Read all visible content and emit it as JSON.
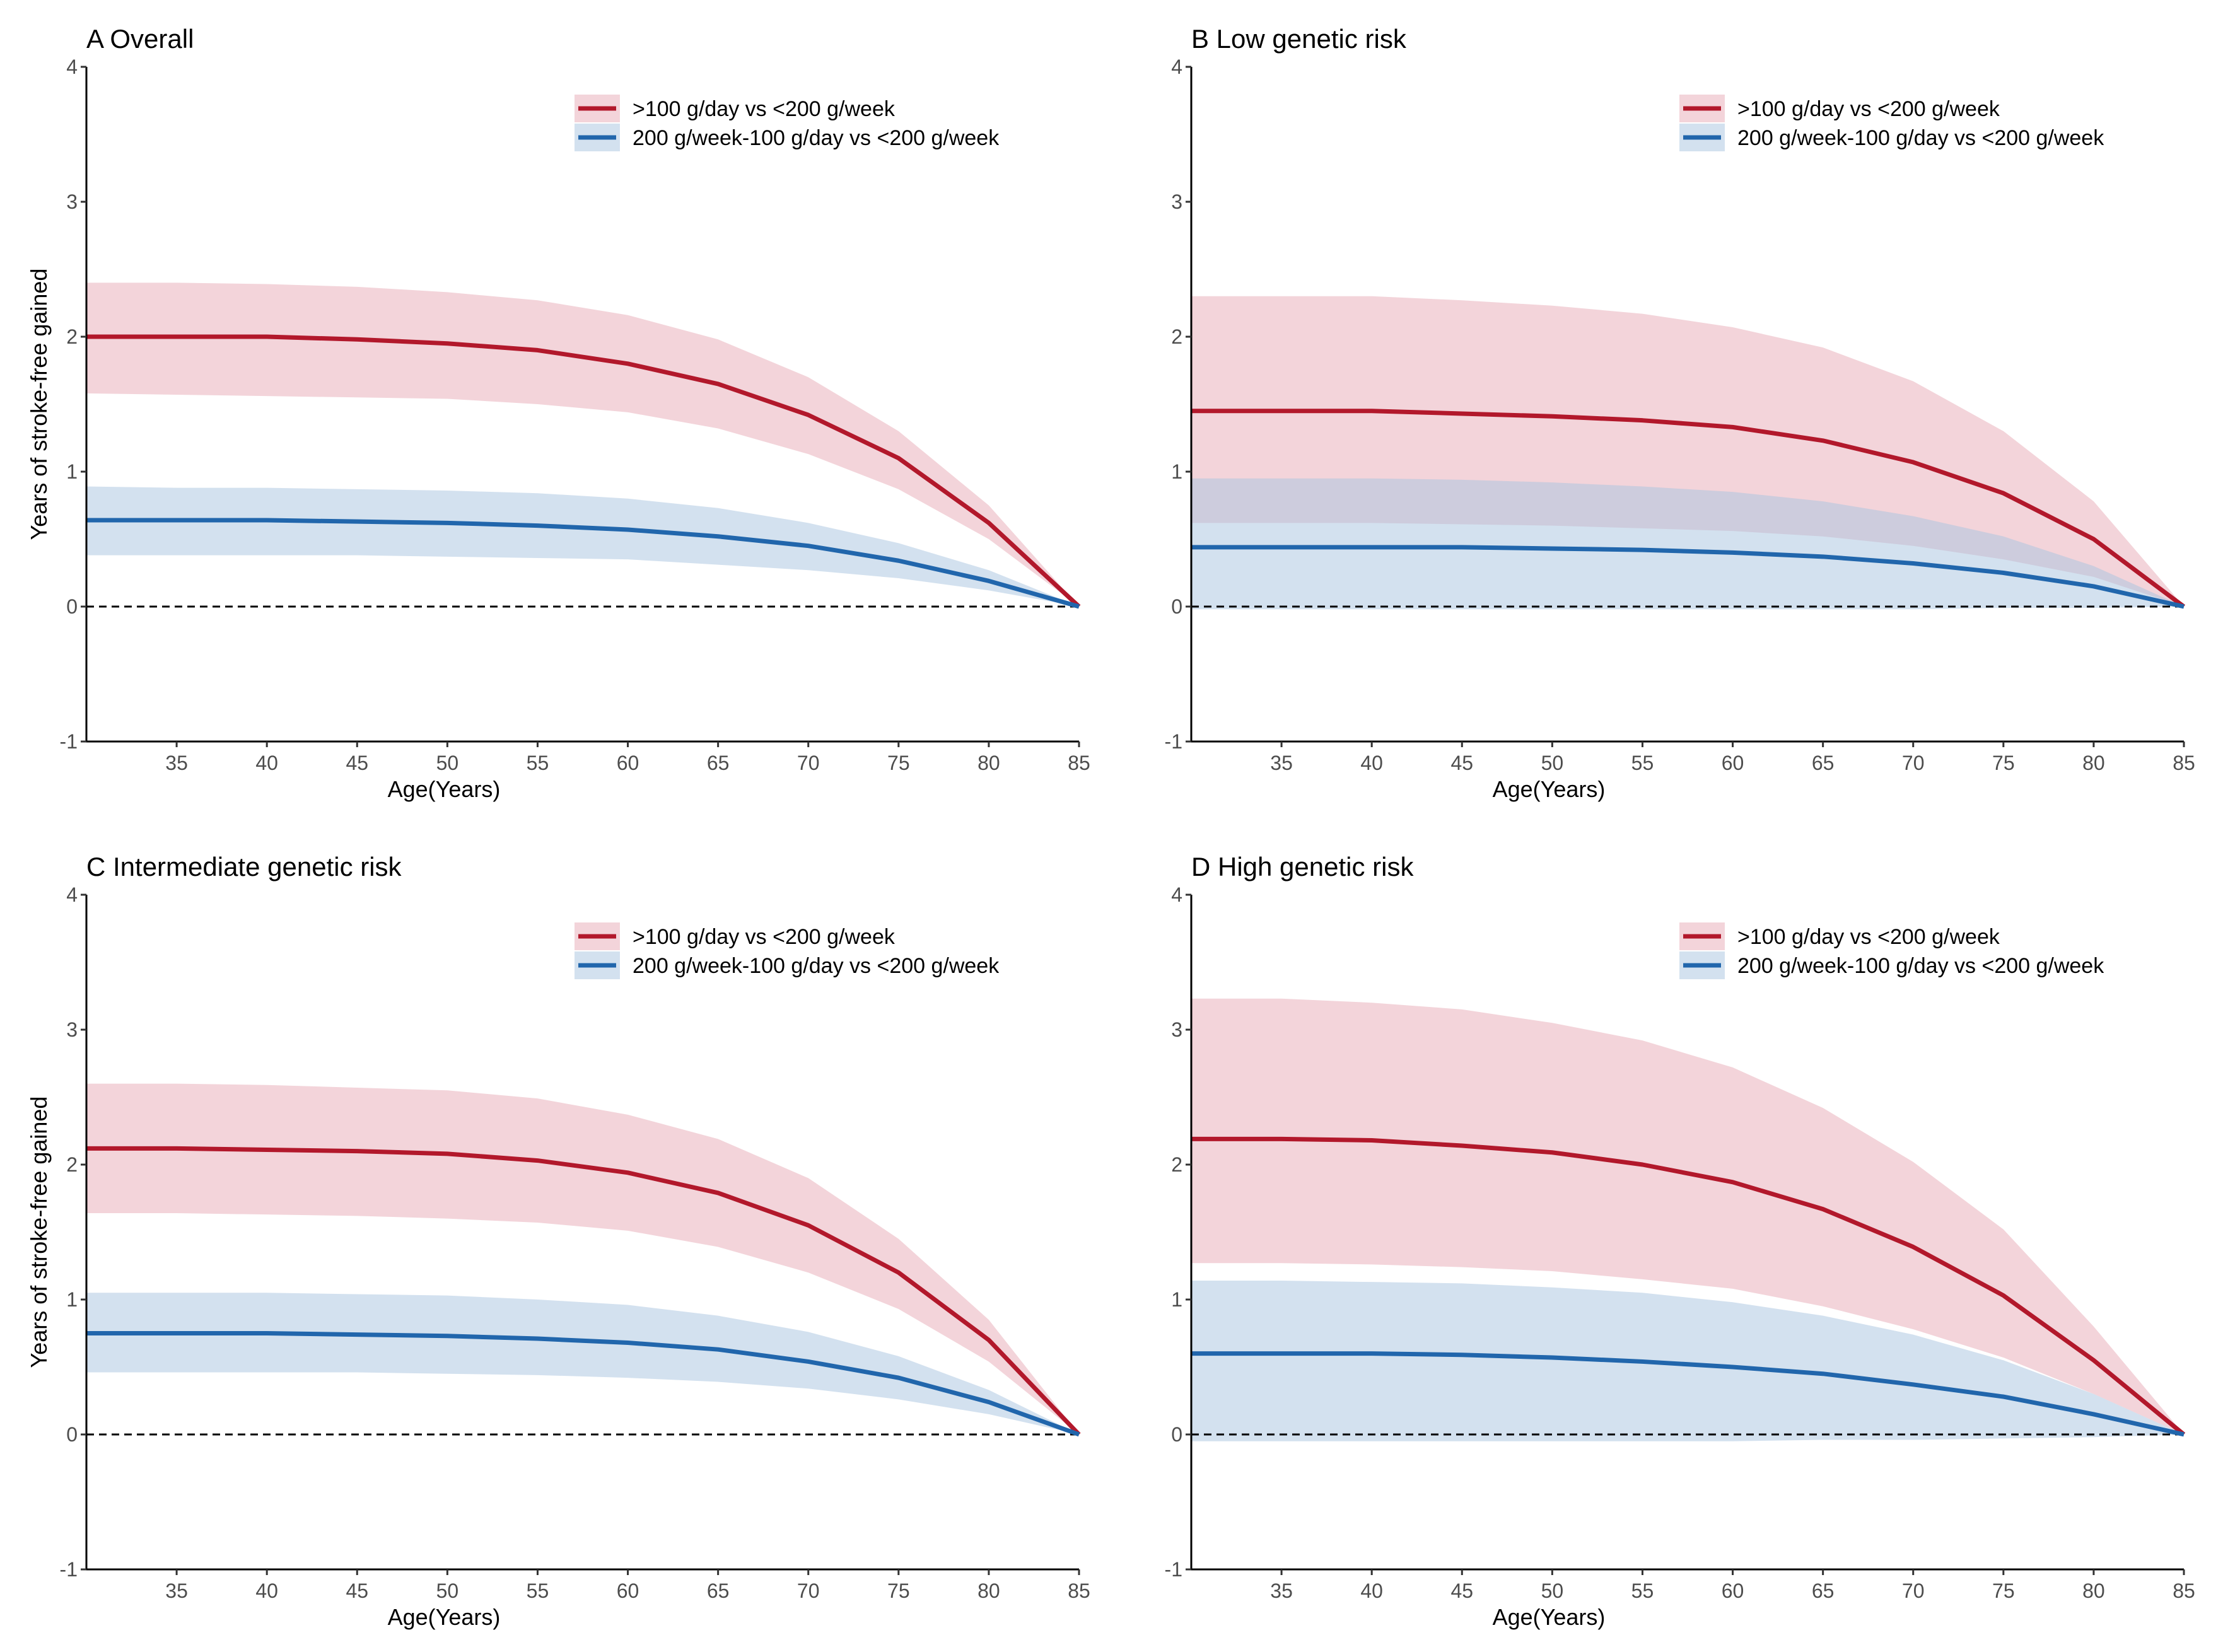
{
  "colors": {
    "red": "#b2182b",
    "red_fill": "#e7a9b6",
    "blue": "#2166ac",
    "blue_fill": "#a7c3df"
  },
  "chart_data": [
    {
      "type": "line",
      "title": "A Overall",
      "xlabel": "Age(Years)",
      "ylabel": "Years of stroke-free gained",
      "xlim": [
        30,
        85
      ],
      "ylim": [
        -1,
        4
      ],
      "xticks": [
        35,
        40,
        45,
        50,
        55,
        60,
        65,
        70,
        75,
        80,
        85
      ],
      "yticks": [
        -1,
        0,
        1,
        2,
        3,
        4
      ],
      "reference_line": 0,
      "legend_position": "top-right",
      "x": [
        30,
        35,
        40,
        45,
        50,
        55,
        60,
        65,
        70,
        75,
        80,
        85
      ],
      "series": [
        {
          "name": ">100 g/day vs <200 g/week",
          "color": "red",
          "values": [
            2.0,
            2.0,
            2.0,
            1.98,
            1.95,
            1.9,
            1.8,
            1.65,
            1.42,
            1.1,
            0.62,
            0
          ],
          "lower": [
            1.58,
            1.57,
            1.56,
            1.55,
            1.54,
            1.5,
            1.44,
            1.32,
            1.13,
            0.87,
            0.5,
            0
          ],
          "upper": [
            2.4,
            2.4,
            2.39,
            2.37,
            2.33,
            2.27,
            2.16,
            1.98,
            1.7,
            1.3,
            0.75,
            0
          ]
        },
        {
          "name": "200 g/week-100 g/day vs <200 g/week",
          "color": "blue",
          "values": [
            0.64,
            0.64,
            0.64,
            0.63,
            0.62,
            0.6,
            0.57,
            0.52,
            0.45,
            0.34,
            0.19,
            0
          ],
          "lower": [
            0.38,
            0.38,
            0.38,
            0.38,
            0.37,
            0.36,
            0.35,
            0.31,
            0.27,
            0.21,
            0.12,
            0
          ],
          "upper": [
            0.89,
            0.88,
            0.88,
            0.87,
            0.86,
            0.84,
            0.8,
            0.73,
            0.62,
            0.47,
            0.27,
            0
          ]
        }
      ]
    },
    {
      "type": "line",
      "title": "B Low genetic risk",
      "xlabel": "Age(Years)",
      "ylabel": "",
      "xlim": [
        30,
        85
      ],
      "ylim": [
        -1,
        4
      ],
      "xticks": [
        35,
        40,
        45,
        50,
        55,
        60,
        65,
        70,
        75,
        80,
        85
      ],
      "yticks": [
        -1,
        0,
        1,
        2,
        3,
        4
      ],
      "reference_line": 0,
      "legend_position": "top-right",
      "x": [
        30,
        35,
        40,
        45,
        50,
        55,
        60,
        65,
        70,
        75,
        80,
        85
      ],
      "series": [
        {
          "name": ">100 g/day vs <200 g/week",
          "color": "red",
          "values": [
            1.45,
            1.45,
            1.45,
            1.43,
            1.41,
            1.38,
            1.33,
            1.23,
            1.07,
            0.84,
            0.5,
            0
          ],
          "lower": [
            0.62,
            0.62,
            0.62,
            0.61,
            0.6,
            0.58,
            0.56,
            0.52,
            0.45,
            0.35,
            0.22,
            0
          ],
          "upper": [
            2.3,
            2.3,
            2.3,
            2.27,
            2.23,
            2.17,
            2.07,
            1.92,
            1.67,
            1.3,
            0.78,
            0
          ]
        },
        {
          "name": "200 g/week-100 g/day vs <200 g/week",
          "color": "blue",
          "values": [
            0.44,
            0.44,
            0.44,
            0.44,
            0.43,
            0.42,
            0.4,
            0.37,
            0.32,
            0.25,
            0.15,
            0
          ],
          "lower": [
            -0.02,
            -0.02,
            -0.02,
            -0.02,
            -0.02,
            -0.02,
            -0.02,
            -0.02,
            -0.02,
            -0.01,
            -0.01,
            0
          ],
          "upper": [
            0.95,
            0.95,
            0.95,
            0.94,
            0.92,
            0.89,
            0.85,
            0.78,
            0.67,
            0.52,
            0.3,
            0
          ]
        }
      ]
    },
    {
      "type": "line",
      "title": "C Intermediate genetic risk",
      "xlabel": "Age(Years)",
      "ylabel": "Years of stroke-free gained",
      "xlim": [
        30,
        85
      ],
      "ylim": [
        -1,
        4
      ],
      "xticks": [
        35,
        40,
        45,
        50,
        55,
        60,
        65,
        70,
        75,
        80,
        85
      ],
      "yticks": [
        -1,
        0,
        1,
        2,
        3,
        4
      ],
      "reference_line": 0,
      "legend_position": "top-right",
      "x": [
        30,
        35,
        40,
        45,
        50,
        55,
        60,
        65,
        70,
        75,
        80,
        85
      ],
      "series": [
        {
          "name": ">100 g/day vs <200 g/week",
          "color": "red",
          "values": [
            2.12,
            2.12,
            2.11,
            2.1,
            2.08,
            2.03,
            1.94,
            1.79,
            1.55,
            1.2,
            0.7,
            0
          ],
          "lower": [
            1.64,
            1.64,
            1.63,
            1.62,
            1.6,
            1.57,
            1.51,
            1.39,
            1.2,
            0.93,
            0.54,
            0
          ],
          "upper": [
            2.6,
            2.6,
            2.59,
            2.57,
            2.55,
            2.49,
            2.37,
            2.19,
            1.9,
            1.45,
            0.85,
            0
          ]
        },
        {
          "name": "200 g/week-100 g/day vs <200 g/week",
          "color": "blue",
          "values": [
            0.75,
            0.75,
            0.75,
            0.74,
            0.73,
            0.71,
            0.68,
            0.63,
            0.54,
            0.42,
            0.24,
            0
          ],
          "lower": [
            0.46,
            0.46,
            0.46,
            0.46,
            0.45,
            0.44,
            0.42,
            0.39,
            0.34,
            0.26,
            0.15,
            0
          ],
          "upper": [
            1.05,
            1.05,
            1.05,
            1.04,
            1.03,
            1.0,
            0.96,
            0.88,
            0.76,
            0.58,
            0.33,
            0
          ]
        }
      ]
    },
    {
      "type": "line",
      "title": "D High genetic risk",
      "xlabel": "Age(Years)",
      "ylabel": "",
      "xlim": [
        30,
        85
      ],
      "ylim": [
        -1,
        4
      ],
      "xticks": [
        35,
        40,
        45,
        50,
        55,
        60,
        65,
        70,
        75,
        80,
        85
      ],
      "yticks": [
        -1,
        0,
        1,
        2,
        3,
        4
      ],
      "reference_line": 0,
      "legend_position": "top-right",
      "x": [
        30,
        35,
        40,
        45,
        50,
        55,
        60,
        65,
        70,
        75,
        80,
        85
      ],
      "series": [
        {
          "name": ">100 g/day vs <200 g/week",
          "color": "red",
          "values": [
            2.19,
            2.19,
            2.18,
            2.14,
            2.09,
            2.0,
            1.87,
            1.67,
            1.39,
            1.03,
            0.55,
            0
          ],
          "lower": [
            1.27,
            1.27,
            1.26,
            1.24,
            1.21,
            1.15,
            1.08,
            0.95,
            0.78,
            0.57,
            0.3,
            0
          ],
          "upper": [
            3.23,
            3.23,
            3.2,
            3.15,
            3.05,
            2.92,
            2.72,
            2.42,
            2.02,
            1.52,
            0.8,
            0
          ]
        },
        {
          "name": "200 g/week-100 g/day vs <200 g/week",
          "color": "blue",
          "values": [
            0.6,
            0.6,
            0.6,
            0.59,
            0.57,
            0.54,
            0.5,
            0.45,
            0.37,
            0.28,
            0.15,
            0
          ],
          "lower": [
            -0.05,
            -0.05,
            -0.05,
            -0.05,
            -0.05,
            -0.05,
            -0.05,
            -0.04,
            -0.04,
            -0.03,
            -0.02,
            0
          ],
          "upper": [
            1.14,
            1.14,
            1.13,
            1.12,
            1.09,
            1.05,
            0.98,
            0.88,
            0.74,
            0.55,
            0.3,
            0
          ]
        }
      ]
    }
  ]
}
